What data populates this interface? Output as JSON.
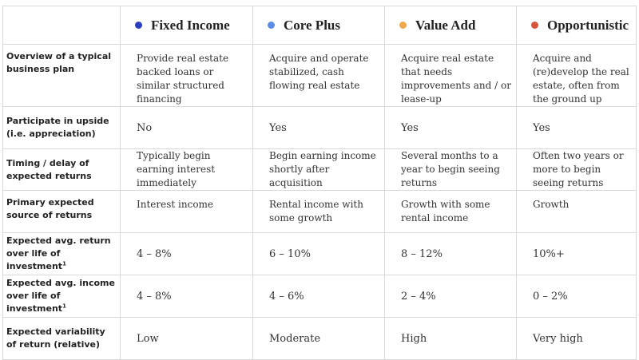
{
  "columns": [
    {
      "label": "Fixed Income",
      "color": "#2b3ec2"
    },
    {
      "label": "Core Plus",
      "color": "#5b8de8"
    },
    {
      "label": "Value Add",
      "color": "#f0a84a"
    },
    {
      "label": "Opportunistic",
      "color": "#d6553a"
    }
  ],
  "rows": [
    {
      "label": "Overview of a typical business plan",
      "cells": [
        "Provide real estate backed loans or similar structured financing",
        "Acquire and operate stabilized, cash flowing real estate",
        "Acquire real estate that needs improvements and / or lease-up",
        "Acquire and (re)develop the real estate, often from the ground up"
      ]
    },
    {
      "label": "Participate in upside (i.e. appreciation)",
      "cells": [
        "No",
        "Yes",
        "Yes",
        "Yes"
      ]
    },
    {
      "label": "Timing / delay of expected returns",
      "cells": [
        "Typically begin earning interest immediately",
        "Begin earning income shortly after acquisition",
        "Several months to a year to begin seeing returns",
        "Often two years or more to begin seeing returns"
      ]
    },
    {
      "label": "Primary expected source of returns",
      "cells": [
        "Interest income",
        "Rental income with some growth",
        "Growth with some rental income",
        "Growth"
      ]
    },
    {
      "label": "Expected avg. return over life of investment",
      "footnote": "1",
      "cells": [
        "4 – 8%",
        "6 – 10%",
        "8 – 12%",
        "10%+"
      ]
    },
    {
      "label": "Expected avg. income over life of investment",
      "footnote": "1",
      "cells": [
        "4 – 8%",
        "4 – 6%",
        "2 – 4%",
        "0 – 2%"
      ]
    },
    {
      "label": "Expected variability of return (relative)",
      "cells": [
        "Low",
        "Moderate",
        "High",
        "Very high"
      ]
    }
  ]
}
